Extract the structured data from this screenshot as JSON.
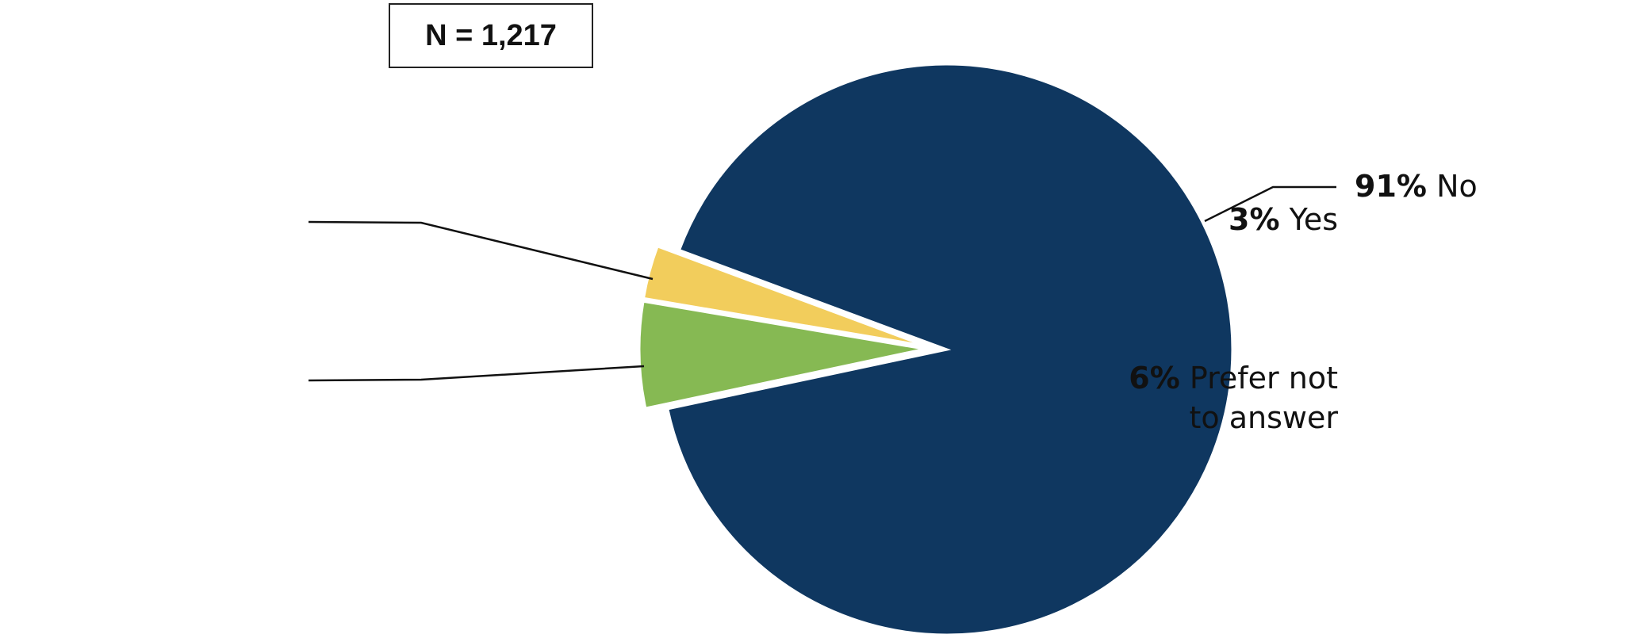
{
  "chart_data": {
    "type": "pie",
    "annotation": "N = 1,217",
    "categories": [
      "Yes",
      "Prefer not to answer",
      "No"
    ],
    "values": [
      3,
      6,
      91
    ],
    "value_labels": [
      "3%",
      "6%",
      "91%"
    ],
    "colors": [
      "#f2cd5c",
      "#86b953",
      "#0f3760"
    ]
  }
}
